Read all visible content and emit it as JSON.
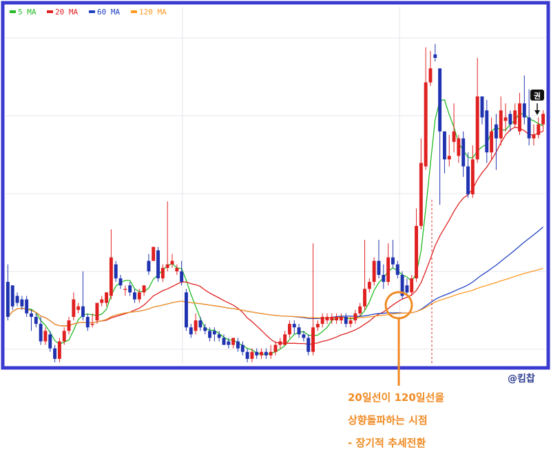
{
  "chart_data": {
    "type": "candlestick",
    "ylim": [
      0,
      100
    ],
    "grid": true,
    "legend": {
      "placement": "top-left",
      "items": [
        {
          "name": "5 MA",
          "color": "#22bb22"
        },
        {
          "name": "20 MA",
          "color": "#e02020"
        },
        {
          "name": "60 MA",
          "color": "#2040c0"
        },
        {
          "name": "120 MA",
          "color": "#ff9922"
        }
      ]
    },
    "colors": {
      "up": "#e02020",
      "down": "#1f32b0",
      "frame": "#3a3ad0",
      "annotation": "#f08a22"
    },
    "candles": [
      [
        23,
        13,
        28,
        12
      ],
      [
        22,
        16,
        22,
        15
      ],
      [
        19,
        17,
        20,
        16
      ],
      [
        18,
        16,
        19,
        15
      ],
      [
        18,
        14,
        19,
        13
      ],
      [
        14,
        13,
        15,
        9
      ],
      [
        13,
        11,
        14,
        10
      ],
      [
        11,
        6,
        13,
        5
      ],
      [
        6,
        9,
        10,
        5
      ],
      [
        8,
        4,
        9,
        3
      ],
      [
        4,
        1,
        5,
        0
      ],
      [
        1,
        6,
        7,
        0
      ],
      [
        6,
        9,
        10,
        5
      ],
      [
        9,
        12,
        13,
        8
      ],
      [
        13,
        18,
        20,
        12
      ],
      [
        15,
        16,
        17,
        14
      ],
      [
        16,
        13,
        26,
        12
      ],
      [
        13,
        10,
        14,
        9
      ],
      [
        11,
        11,
        14,
        10
      ],
      [
        12,
        17,
        14,
        11
      ],
      [
        17,
        18,
        19,
        16
      ],
      [
        17,
        20,
        20,
        16
      ],
      [
        19,
        30,
        38,
        18
      ],
      [
        28,
        24,
        29,
        23
      ],
      [
        24,
        22,
        25,
        21
      ],
      [
        21,
        21,
        22,
        19
      ],
      [
        22,
        20,
        23,
        19
      ],
      [
        20,
        18,
        21,
        17
      ],
      [
        18,
        20,
        21,
        17
      ],
      [
        20,
        22,
        22,
        19
      ],
      [
        29,
        26,
        31,
        25
      ],
      [
        29,
        33,
        33,
        29
      ],
      [
        32,
        24,
        33,
        23
      ],
      [
        24,
        27,
        28,
        23
      ],
      [
        27,
        28,
        46,
        26
      ],
      [
        28,
        29,
        31,
        27
      ],
      [
        26,
        27,
        28,
        25
      ],
      [
        26,
        23,
        29,
        22
      ],
      [
        20,
        10,
        21,
        9
      ],
      [
        10,
        8,
        11,
        7
      ],
      [
        9,
        12,
        14,
        8
      ],
      [
        12,
        10,
        13,
        9
      ],
      [
        10,
        9,
        11,
        8
      ],
      [
        9,
        7,
        10,
        6
      ],
      [
        9,
        8,
        10,
        6
      ],
      [
        8,
        7,
        9,
        6
      ],
      [
        7,
        5,
        8,
        5
      ],
      [
        6,
        5,
        7,
        4
      ],
      [
        5,
        7,
        7,
        4
      ],
      [
        6,
        4,
        7,
        3
      ],
      [
        5,
        3,
        6,
        2
      ],
      [
        3,
        1,
        4,
        0
      ],
      [
        1,
        3,
        4,
        0
      ],
      [
        3,
        2,
        4,
        1
      ],
      [
        2,
        3,
        4,
        1
      ],
      [
        3,
        2,
        4,
        1
      ],
      [
        2,
        3,
        5,
        1
      ],
      [
        3,
        5,
        6,
        2
      ],
      [
        5,
        6,
        7,
        4
      ],
      [
        5,
        8,
        9,
        5
      ],
      [
        8,
        11,
        12,
        7
      ],
      [
        11,
        10,
        12,
        8
      ],
      [
        10,
        8,
        11,
        7
      ],
      [
        8,
        7,
        9,
        6
      ],
      [
        7,
        3,
        8,
        2
      ],
      [
        3,
        10,
        34,
        2
      ],
      [
        10,
        11,
        12,
        9
      ],
      [
        11,
        13,
        14,
        10
      ],
      [
        12,
        13,
        14,
        11
      ],
      [
        12,
        13,
        14,
        11
      ],
      [
        12,
        13,
        14,
        11
      ],
      [
        12,
        13,
        14,
        11
      ],
      [
        13,
        11,
        14,
        10
      ],
      [
        11,
        12,
        13,
        10
      ],
      [
        12,
        14,
        15,
        11
      ],
      [
        14,
        16,
        17,
        13
      ],
      [
        16,
        21,
        35,
        15
      ],
      [
        21,
        23,
        24,
        20
      ],
      [
        23,
        29,
        30,
        22
      ],
      [
        29,
        25,
        35,
        24
      ],
      [
        25,
        23,
        28,
        21
      ],
      [
        23,
        30,
        34,
        22
      ],
      [
        30,
        28,
        35,
        27
      ],
      [
        28,
        25,
        29,
        24
      ],
      [
        25,
        19,
        26,
        18
      ],
      [
        22,
        20,
        24,
        19
      ],
      [
        20,
        24,
        25,
        19
      ],
      [
        24,
        39,
        44,
        23
      ],
      [
        39,
        57,
        64,
        38
      ],
      [
        56,
        80,
        90,
        55
      ],
      [
        80,
        84,
        89,
        79
      ],
      [
        88,
        87,
        91,
        86
      ],
      [
        84,
        66,
        75,
        45
      ],
      [
        66,
        58,
        62,
        54
      ],
      [
        58,
        59,
        65,
        56
      ],
      [
        63,
        66,
        74,
        60
      ],
      [
        59,
        64,
        65,
        57
      ],
      [
        64,
        56,
        66,
        53
      ],
      [
        56,
        48,
        60,
        47
      ],
      [
        48,
        58,
        62,
        47
      ],
      [
        58,
        76,
        87,
        57
      ],
      [
        76,
        70,
        74,
        68
      ],
      [
        72,
        60,
        75,
        57
      ],
      [
        60,
        66,
        70,
        58
      ],
      [
        68,
        64,
        71,
        55
      ],
      [
        64,
        72,
        76,
        62
      ],
      [
        69,
        70,
        74,
        66
      ],
      [
        71,
        68,
        72,
        66
      ],
      [
        68,
        72,
        74,
        67
      ],
      [
        66,
        74,
        77,
        65
      ],
      [
        74,
        70,
        82,
        68
      ],
      [
        70,
        64,
        78,
        62
      ],
      [
        64,
        65,
        68,
        62
      ],
      [
        65,
        68,
        70,
        64
      ],
      [
        68,
        71,
        72,
        66
      ]
    ],
    "annotations": {
      "credit": "@킴찹",
      "lines": [
        "20일선이 120일선을",
        "상향돌파하는 시점",
        "- 장기적 추세전환"
      ],
      "marker_label": "권"
    }
  }
}
